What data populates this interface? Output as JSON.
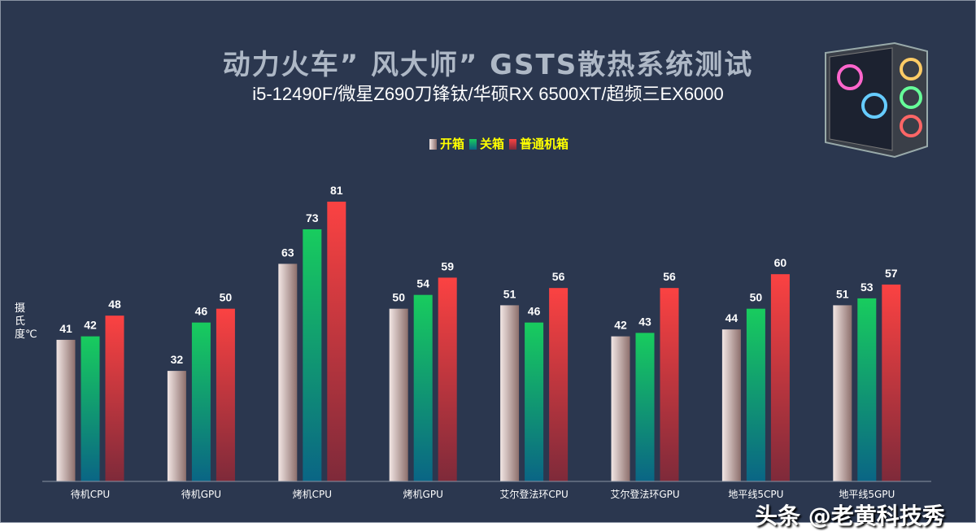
{
  "title": "动力火车” 风大师” GSTS散热系统测试",
  "subtitle": "i5-12490F/微星Z690刀锋钛/华硕RX 6500XT/超频三EX6000",
  "watermark": "头条 @老黄科技秀",
  "chart_data": {
    "type": "bar",
    "ylabel": "摄氏度℃",
    "legend_position": "top",
    "grid": false,
    "ylim": [
      0,
      81
    ],
    "categories": [
      "待机CPU",
      "待机GPU",
      "烤机CPU",
      "烤机GPU",
      "艾尔登法环CPU",
      "艾尔登法环GPU",
      "地平线5CPU",
      "地平线5GPU"
    ],
    "series": [
      {
        "name": "开箱",
        "values": [
          41,
          32,
          63,
          50,
          51,
          42,
          44,
          51
        ],
        "colors": [
          "#f2e6e4",
          "#8d6f6c"
        ]
      },
      {
        "name": "关箱",
        "values": [
          42,
          46,
          73,
          54,
          46,
          43,
          50,
          53
        ],
        "colors": [
          "#18cc5e",
          "#0a6585"
        ]
      },
      {
        "name": "普通机箱",
        "values": [
          48,
          50,
          81,
          59,
          56,
          56,
          60,
          57
        ],
        "colors": [
          "#fb4242",
          "#7e2a3a"
        ]
      }
    ]
  }
}
